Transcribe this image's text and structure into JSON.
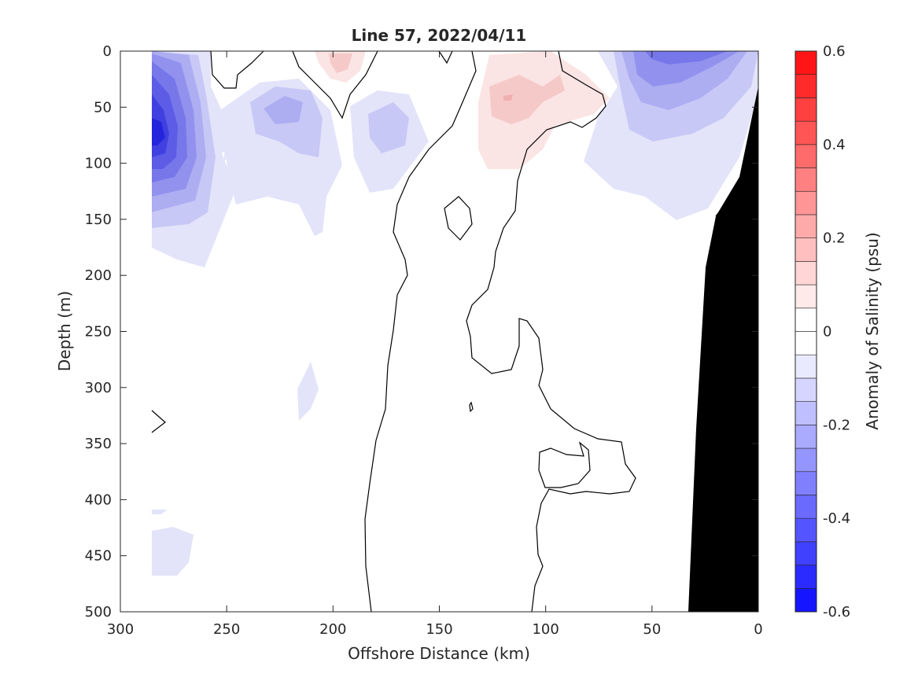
{
  "chart_data": {
    "type": "heatmap",
    "title": "Line 57, 2022/04/11",
    "xlabel": "Offshore Distance (km)",
    "ylabel": "Depth (m)",
    "xlim": [
      300,
      0
    ],
    "ylim": [
      0,
      500
    ],
    "x_reversed": true,
    "y_reversed": true,
    "xticks": [
      "300",
      "250",
      "200",
      "150",
      "100",
      "50",
      "0"
    ],
    "yticks": [
      "0",
      "50",
      "100",
      "150",
      "200",
      "250",
      "300",
      "350",
      "400",
      "450",
      "500"
    ],
    "colorbar": {
      "label": "Anomaly of Salinity (psu)",
      "range": [
        -0.6,
        0.6
      ],
      "ticks": [
        "-0.6",
        "-0.4",
        "-0.2",
        "0",
        "0.2",
        "0.4",
        "0.6"
      ],
      "levels": [
        -0.6,
        -0.55,
        -0.5,
        -0.45,
        -0.4,
        -0.35,
        -0.3,
        -0.25,
        -0.2,
        -0.15,
        -0.1,
        -0.05,
        0,
        0.05,
        0.1,
        0.15,
        0.2,
        0.25,
        0.3,
        0.35,
        0.4,
        0.45,
        0.5,
        0.55,
        0.6
      ],
      "low_color": "#0000ff",
      "mid_color": "#ffffff",
      "high_color": "#ff0000"
    },
    "features": [
      {
        "name": "fresh-core-west",
        "x": 280,
        "y": 75,
        "value": -0.5
      },
      {
        "name": "fresh-core-nearshore",
        "x": 35,
        "y": 20,
        "value": -0.3
      },
      {
        "name": "salty-patch-offshore",
        "x": 195,
        "y": 10,
        "value": 0.1
      },
      {
        "name": "salty-patch-mid",
        "x": 115,
        "y": 45,
        "value": 0.1
      }
    ],
    "bathymetry_color": "#000000"
  }
}
